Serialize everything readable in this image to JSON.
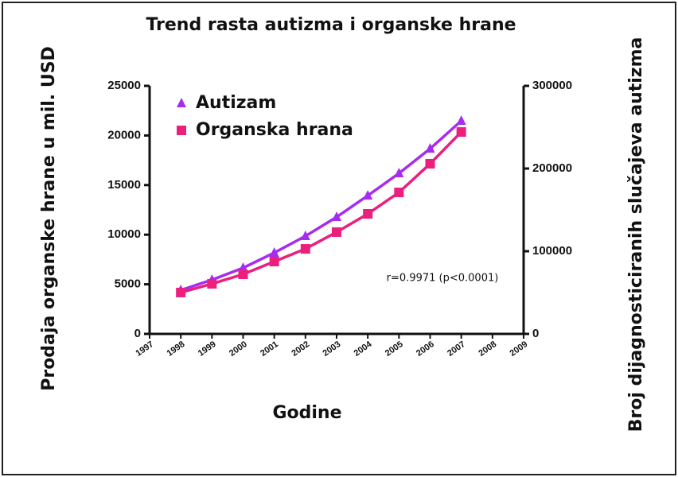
{
  "chart_data": {
    "type": "line",
    "title": "Trend rasta autizma i organske hrane",
    "x_label": "Godine",
    "y_label": "Prodaja organske hrane u mil. USD",
    "y2_label": "Broj dijagnosticiranih slučajeva autizma",
    "annotation": "r=0.9971 (p<0.0001)",
    "x": [
      1998,
      1999,
      2000,
      2001,
      2002,
      2003,
      2004,
      2005,
      2006,
      2007
    ],
    "series": [
      {
        "name": "Autizam",
        "color": "#a52cf0",
        "marker": "triangle",
        "axis": "y2",
        "values": [
          52900,
          65400,
          79800,
          98100,
          118300,
          141300,
          167300,
          194200,
          224000,
          257700
        ]
      },
      {
        "name": "Organska hrana",
        "color": "#ec1f7d",
        "marker": "square",
        "values": [
          4170,
          5050,
          6010,
          7290,
          8570,
          10260,
          12100,
          14260,
          17150,
          20350
        ]
      }
    ],
    "xlim": [
      1997,
      2009
    ],
    "xticks": [
      1997,
      1998,
      1999,
      2000,
      2001,
      2002,
      2003,
      2004,
      2005,
      2006,
      2007,
      2008,
      2009
    ],
    "ylim": [
      0,
      25000
    ],
    "yticks": [
      0,
      5000,
      10000,
      15000,
      20000,
      25000
    ],
    "y2lim": [
      0,
      300000
    ],
    "y2ticks": [
      0,
      100000,
      200000,
      300000
    ],
    "legend": "upper left"
  }
}
